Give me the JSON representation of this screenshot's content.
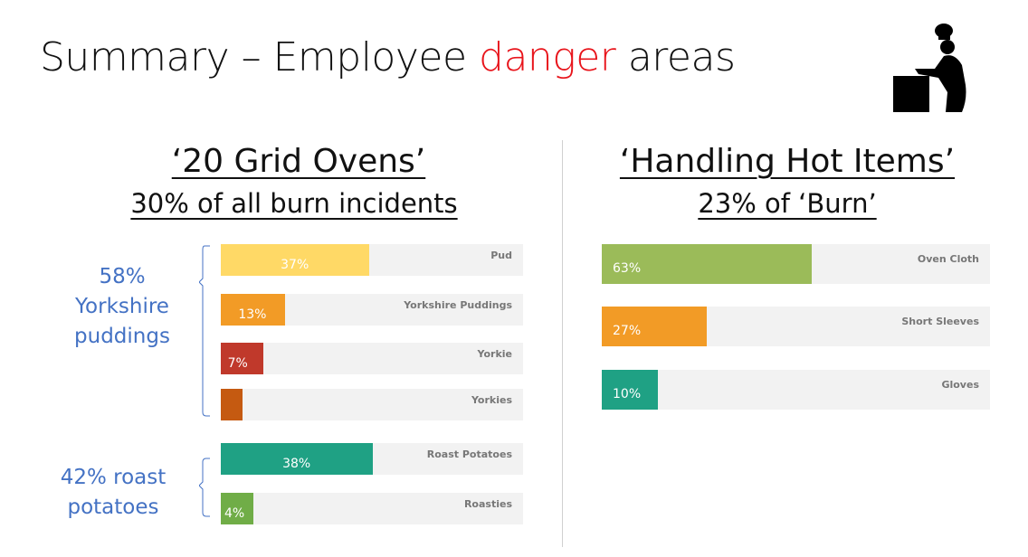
{
  "title": {
    "prefix": "Summary – Employee ",
    "highlight": "danger",
    "suffix": " areas",
    "highlight_color": "#e8141b"
  },
  "icon": "chef-at-oven-icon",
  "left": {
    "heading": "‘20 Grid Ovens’",
    "subheading": "30% of all burn incidents",
    "groups": [
      {
        "label_lines": [
          "58%",
          "Yorkshire",
          "puddings"
        ]
      },
      {
        "label_lines": [
          "42% roast",
          "potatoes"
        ]
      }
    ]
  },
  "right": {
    "heading": "‘Handling Hot Items’",
    "subheading": "23% of ‘Burn’"
  },
  "chart_data": [
    {
      "type": "bar",
      "orientation": "horizontal",
      "categories": [
        "Pud",
        "Yorkshire Puddings",
        "Yorkie",
        "Yorkies",
        "Roast Potatoes",
        "Roasties"
      ],
      "values": [
        37,
        13,
        7,
        1,
        38,
        4
      ],
      "labels": [
        "37%",
        "13%",
        "7%",
        "",
        "38%",
        "4%"
      ],
      "colors": [
        "#ffd966",
        "#f29b26",
        "#c0392b",
        "#c55a11",
        "#1fa184",
        "#70ad47"
      ],
      "track_color": "#f2f2f2",
      "grid": false
    },
    {
      "type": "bar",
      "orientation": "horizontal",
      "categories": [
        "Oven Cloth",
        "Short Sleeves",
        "Gloves"
      ],
      "values": [
        63,
        27,
        10
      ],
      "labels": [
        "63%",
        "27%",
        "10%"
      ],
      "colors": [
        "#9bbb59",
        "#f29b26",
        "#1fa184"
      ],
      "track_color": "#f2f2f2",
      "grid": false
    }
  ]
}
